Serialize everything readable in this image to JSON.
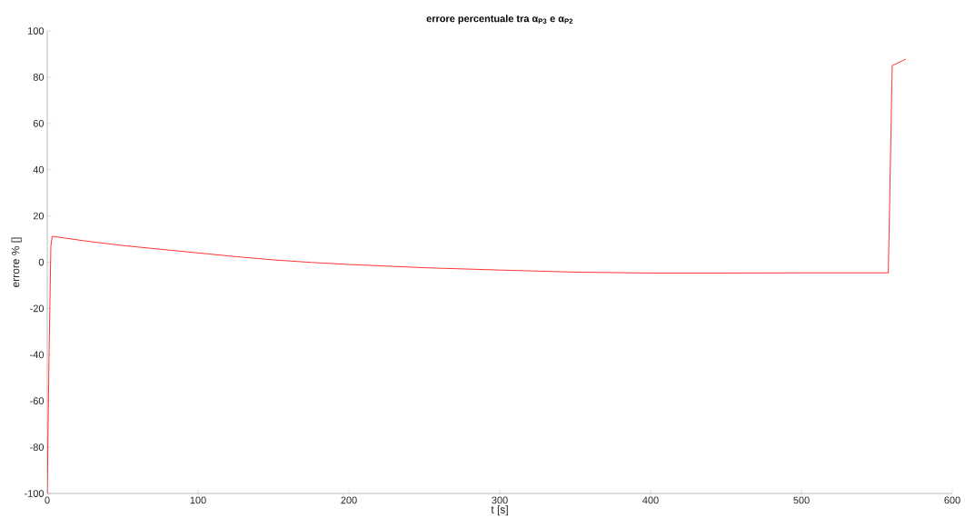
{
  "chart_data": {
    "type": "line",
    "title": "errore percentuale tra α$_{P3}$ e α$_{P2}$",
    "xlabel": "t [s]",
    "ylabel": "errore % []",
    "x": [
      0,
      1.2,
      2.4,
      3.3,
      25,
      50,
      75,
      100,
      125,
      150,
      175,
      200,
      250,
      300,
      350,
      400,
      450,
      500,
      540,
      557.6,
      560.2,
      569.3
    ],
    "series": [
      {
        "color": "#ff0000",
        "values": [
          -100,
          -40,
          7,
          11.2,
          9.2,
          7.2,
          5.6,
          4.0,
          2.4,
          1.0,
          -0.1,
          -1.0,
          -2.4,
          -3.4,
          -4.3,
          -4.7,
          -4.7,
          -4.6,
          -4.6,
          -4.6,
          85,
          87.8
        ]
      }
    ],
    "xlim": [
      0,
      600
    ],
    "ylim": [
      -100,
      100
    ],
    "xticks": [
      0,
      100,
      200,
      300,
      400,
      500,
      600
    ],
    "yticks": [
      -100,
      -80,
      -60,
      -40,
      -20,
      0,
      20,
      40,
      60,
      80,
      100
    ],
    "grid": false,
    "marker": "none",
    "line_style": "solid"
  }
}
